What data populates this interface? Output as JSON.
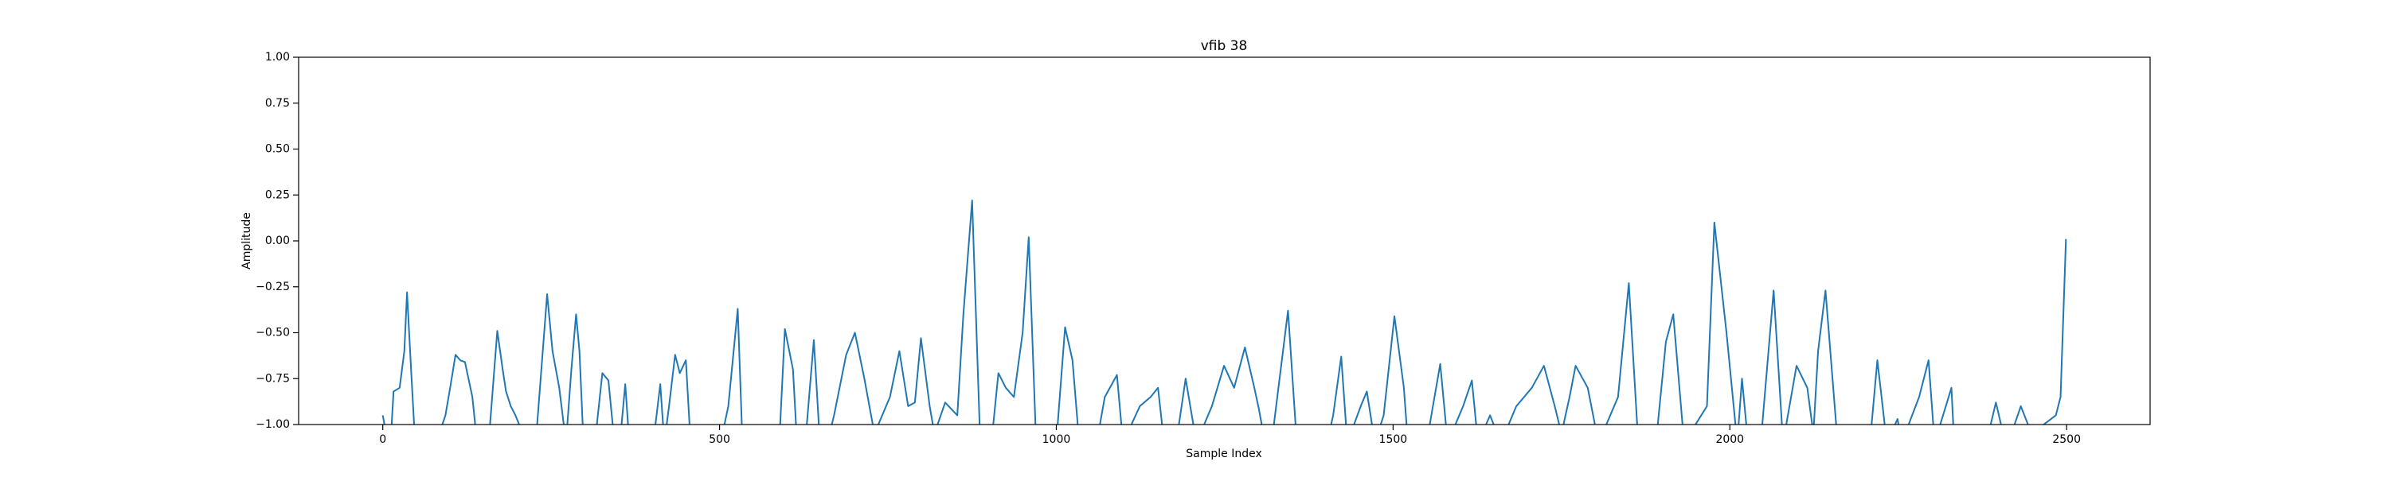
{
  "chart_data": {
    "type": "line",
    "title": "vfib 38",
    "xlabel": "Sample Index",
    "ylabel": "Amplitude",
    "color": "#1f77b4",
    "xlim": [
      -124.95,
      2623.95
    ],
    "ylim": [
      -1,
      1
    ],
    "xticks": [
      0,
      500,
      1000,
      1500,
      2000,
      2500
    ],
    "yticks": [
      {
        "value": -1,
        "label": "−1.00"
      },
      {
        "value": -0.75,
        "label": "−0.75"
      },
      {
        "value": -0.5,
        "label": "−0.50"
      },
      {
        "value": -0.25,
        "label": "−0.25"
      },
      {
        "value": 0,
        "label": "0.00"
      },
      {
        "value": 0.25,
        "label": "0.25"
      },
      {
        "value": 0.5,
        "label": "0.50"
      },
      {
        "value": 0.75,
        "label": "0.75"
      },
      {
        "value": 1,
        "label": "1.00"
      }
    ],
    "x": [
      0,
      5,
      10,
      16,
      25,
      32,
      36,
      42,
      48,
      70,
      93,
      100,
      108,
      115,
      122,
      133,
      140,
      155,
      170,
      178,
      183,
      190,
      197,
      208,
      225,
      244,
      252,
      262,
      272,
      280,
      287,
      292,
      298,
      312,
      326,
      335,
      344,
      352,
      360,
      366,
      395,
      412,
      418,
      425,
      434,
      441,
      450,
      457,
      490,
      513,
      527,
      534,
      560,
      590,
      597,
      609,
      615,
      625,
      640,
      649,
      660,
      670,
      688,
      701,
      715,
      730,
      753,
      767,
      780,
      790,
      799,
      812,
      819,
      835,
      853,
      862,
      875,
      887,
      905,
      914,
      925,
      937,
      950,
      959,
      970,
      1002,
      1013,
      1024,
      1034,
      1055,
      1072,
      1090,
      1099,
      1124,
      1140,
      1151,
      1160,
      1180,
      1192,
      1208,
      1231,
      1249,
      1264,
      1280,
      1294,
      1301,
      1310,
      1323,
      1344,
      1357,
      1390,
      1411,
      1423,
      1432,
      1452,
      1461,
      1473,
      1486,
      1502,
      1516,
      1522,
      1545,
      1570,
      1581,
      1604,
      1617,
      1626,
      1644,
      1660,
      1683,
      1706,
      1724,
      1740,
      1750,
      1762,
      1771,
      1789,
      1805,
      1834,
      1850,
      1864,
      1880,
      1893,
      1905,
      1916,
      1932,
      1966,
      1977,
      1995,
      2011,
      2018,
      2027,
      2047,
      2065,
      2079,
      2099,
      2115,
      2124,
      2131,
      2142,
      2160,
      2208,
      2219,
      2233,
      2249,
      2255,
      2281,
      2295,
      2304,
      2329,
      2333,
      2384,
      2395,
      2409,
      2418,
      2432,
      2448,
      2484,
      2491,
      2499
    ],
    "values": [
      -0.95,
      -1.05,
      -1.2,
      -0.82,
      -0.8,
      -0.6,
      -0.28,
      -0.7,
      -1.1,
      -1.2,
      -0.95,
      -0.8,
      -0.62,
      -0.65,
      -0.66,
      -0.85,
      -1.1,
      -1.2,
      -0.49,
      -0.7,
      -0.82,
      -0.9,
      -0.95,
      -1.05,
      -1.2,
      -0.29,
      -0.6,
      -0.8,
      -1.1,
      -0.7,
      -0.4,
      -0.6,
      -1.1,
      -1.2,
      -0.72,
      -0.76,
      -1.1,
      -1.1,
      -0.78,
      -1.1,
      -1.3,
      -0.78,
      -1.1,
      -0.9,
      -0.62,
      -0.72,
      -0.65,
      -1.1,
      -1.3,
      -0.9,
      -0.37,
      -1.1,
      -1.3,
      -1.0,
      -0.48,
      -0.7,
      -1.1,
      -1.2,
      -0.54,
      -1.1,
      -1.1,
      -0.95,
      -0.62,
      -0.5,
      -0.75,
      -1.05,
      -0.85,
      -0.6,
      -0.9,
      -0.88,
      -0.53,
      -0.9,
      -1.05,
      -0.88,
      -0.95,
      -0.4,
      0.22,
      -1.1,
      -1.05,
      -0.72,
      -0.8,
      -0.85,
      -0.5,
      0.02,
      -1.1,
      -1.0,
      -0.47,
      -0.65,
      -1.1,
      -1.2,
      -0.85,
      -0.73,
      -1.1,
      -0.9,
      -0.85,
      -0.8,
      -1.1,
      -1.05,
      -0.75,
      -1.1,
      -0.9,
      -0.68,
      -0.8,
      -0.58,
      -0.8,
      -0.92,
      -1.1,
      -1.0,
      -0.38,
      -1.1,
      -1.3,
      -0.95,
      -0.63,
      -1.1,
      -0.9,
      -0.82,
      -1.1,
      -0.95,
      -0.41,
      -0.8,
      -1.1,
      -1.2,
      -0.67,
      -1.1,
      -0.9,
      -0.76,
      -1.1,
      -0.95,
      -1.1,
      -0.9,
      -0.8,
      -0.68,
      -0.9,
      -1.05,
      -0.85,
      -0.68,
      -0.8,
      -1.1,
      -0.85,
      -0.23,
      -1.1,
      -1.2,
      -1.0,
      -0.55,
      -0.4,
      -1.1,
      -0.9,
      0.1,
      -0.5,
      -1.1,
      -0.75,
      -1.1,
      -1.05,
      -0.27,
      -1.1,
      -0.68,
      -0.8,
      -1.05,
      -0.6,
      -0.27,
      -1.1,
      -1.1,
      -0.65,
      -1.1,
      -0.97,
      -1.1,
      -0.85,
      -0.65,
      -1.1,
      -0.8,
      -1.1,
      -1.05,
      -0.88,
      -1.1,
      -1.05,
      -0.9,
      -1.05,
      -0.95,
      -0.85,
      0.01
    ]
  }
}
